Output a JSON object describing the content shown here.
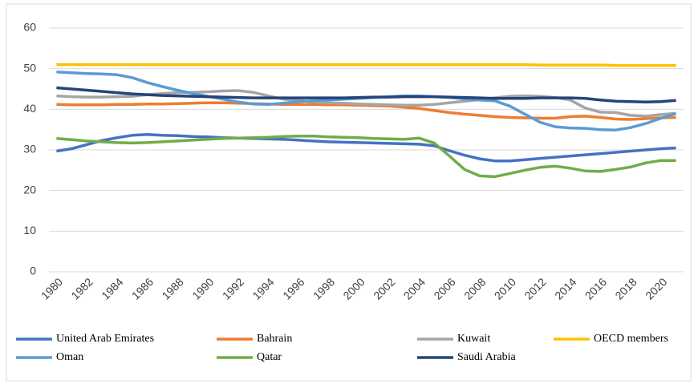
{
  "chart_data": {
    "type": "line",
    "categories": [
      "1980",
      null,
      "1982",
      null,
      "1984",
      null,
      "1986",
      null,
      "1988",
      null,
      "1990",
      null,
      "1992",
      null,
      "1994",
      null,
      "1996",
      null,
      "1998",
      null,
      "2000",
      null,
      "2002",
      null,
      "2004",
      null,
      "2006",
      null,
      "2008",
      null,
      "2010",
      null,
      "2012",
      null,
      "2014",
      null,
      "2016",
      null,
      "2018",
      null,
      "2020",
      null
    ],
    "ylim": [
      0,
      60
    ],
    "yticks": [
      0,
      10,
      20,
      30,
      40,
      50,
      60
    ],
    "grid": true,
    "legend": "bottom",
    "series": [
      {
        "name": "United Arab Emirates",
        "color": "#4472c4",
        "values": [
          29.7,
          30.3,
          31.3,
          32.3,
          33.0,
          33.6,
          33.8,
          33.6,
          33.5,
          33.3,
          33.2,
          33.0,
          32.9,
          32.8,
          32.7,
          32.6,
          32.4,
          32.2,
          32.0,
          31.9,
          31.8,
          31.7,
          31.6,
          31.5,
          31.4,
          31.0,
          29.8,
          28.7,
          27.8,
          27.3,
          27.3,
          27.6,
          27.9,
          28.2,
          28.5,
          28.8,
          29.1,
          29.4,
          29.7,
          30.0,
          30.3,
          30.5
        ]
      },
      {
        "name": "Bahrain",
        "color": "#ed7d31",
        "values": [
          41.2,
          41.1,
          41.1,
          41.1,
          41.2,
          41.2,
          41.3,
          41.3,
          41.4,
          41.5,
          41.6,
          41.6,
          41.5,
          41.4,
          41.3,
          41.2,
          41.2,
          41.2,
          41.1,
          41.1,
          41.0,
          40.9,
          40.8,
          40.5,
          40.2,
          39.7,
          39.2,
          38.8,
          38.5,
          38.2,
          38.0,
          37.9,
          37.8,
          37.8,
          38.2,
          38.3,
          38.0,
          37.6,
          37.5,
          37.7,
          37.9,
          38.0
        ]
      },
      {
        "name": "Kuwait",
        "color": "#a5a5a5",
        "values": [
          43.3,
          43.1,
          43.0,
          43.0,
          43.1,
          43.2,
          43.6,
          43.9,
          44.1,
          44.2,
          44.3,
          44.5,
          44.6,
          44.2,
          43.3,
          42.5,
          42.2,
          41.8,
          41.6,
          41.5,
          41.3,
          41.2,
          41.1,
          41.0,
          41.0,
          41.2,
          41.6,
          42.0,
          42.4,
          42.8,
          43.2,
          43.3,
          43.2,
          42.9,
          42.3,
          40.3,
          39.3,
          39.2,
          38.5,
          38.3,
          38.7,
          39.0
        ]
      },
      {
        "name": "OECD members",
        "color": "#ffc000",
        "values": [
          51.0,
          51.0,
          51.0,
          51.0,
          51.0,
          51.0,
          51.0,
          51.0,
          51.0,
          51.0,
          51.0,
          51.0,
          51.0,
          51.0,
          51.0,
          51.0,
          51.0,
          51.0,
          51.0,
          51.0,
          51.0,
          51.0,
          51.0,
          51.0,
          51.0,
          51.0,
          51.0,
          51.0,
          51.0,
          51.0,
          51.0,
          51.0,
          50.9,
          50.9,
          50.9,
          50.9,
          50.9,
          50.8,
          50.8,
          50.8,
          50.8,
          50.8
        ]
      },
      {
        "name": "Oman",
        "color": "#5b9bd5",
        "values": [
          49.2,
          49.0,
          48.8,
          48.7,
          48.5,
          47.8,
          46.6,
          45.6,
          44.7,
          43.9,
          43.2,
          42.5,
          41.8,
          41.3,
          41.2,
          41.5,
          41.9,
          42.1,
          42.3,
          42.5,
          42.7,
          42.9,
          43.1,
          43.3,
          43.3,
          43.1,
          42.9,
          42.6,
          42.3,
          42.1,
          40.8,
          38.8,
          36.8,
          35.7,
          35.4,
          35.3,
          35.0,
          34.9,
          35.5,
          36.5,
          37.8,
          39.0
        ]
      },
      {
        "name": "Qatar",
        "color": "#70ad47",
        "values": [
          32.8,
          32.5,
          32.2,
          32.0,
          31.8,
          31.7,
          31.8,
          32.0,
          32.2,
          32.4,
          32.6,
          32.8,
          32.9,
          33.0,
          33.1,
          33.3,
          33.4,
          33.4,
          33.2,
          33.1,
          33.0,
          32.8,
          32.7,
          32.6,
          32.9,
          31.7,
          28.5,
          25.2,
          23.6,
          23.4,
          24.2,
          25.0,
          25.7,
          26.0,
          25.5,
          24.8,
          24.7,
          25.2,
          25.8,
          26.8,
          27.4,
          27.4
        ]
      },
      {
        "name": "Saudi Arabia",
        "color": "#264478",
        "values": [
          45.3,
          45.0,
          44.7,
          44.4,
          44.1,
          43.8,
          43.6,
          43.4,
          43.3,
          43.2,
          43.1,
          43.0,
          42.9,
          42.8,
          42.8,
          42.8,
          42.8,
          42.8,
          42.8,
          42.8,
          42.9,
          43.0,
          43.0,
          43.1,
          43.1,
          43.1,
          43.0,
          42.9,
          42.8,
          42.7,
          42.7,
          42.7,
          42.8,
          42.8,
          42.8,
          42.7,
          42.3,
          42.0,
          41.9,
          41.8,
          41.9,
          42.2
        ]
      }
    ]
  }
}
